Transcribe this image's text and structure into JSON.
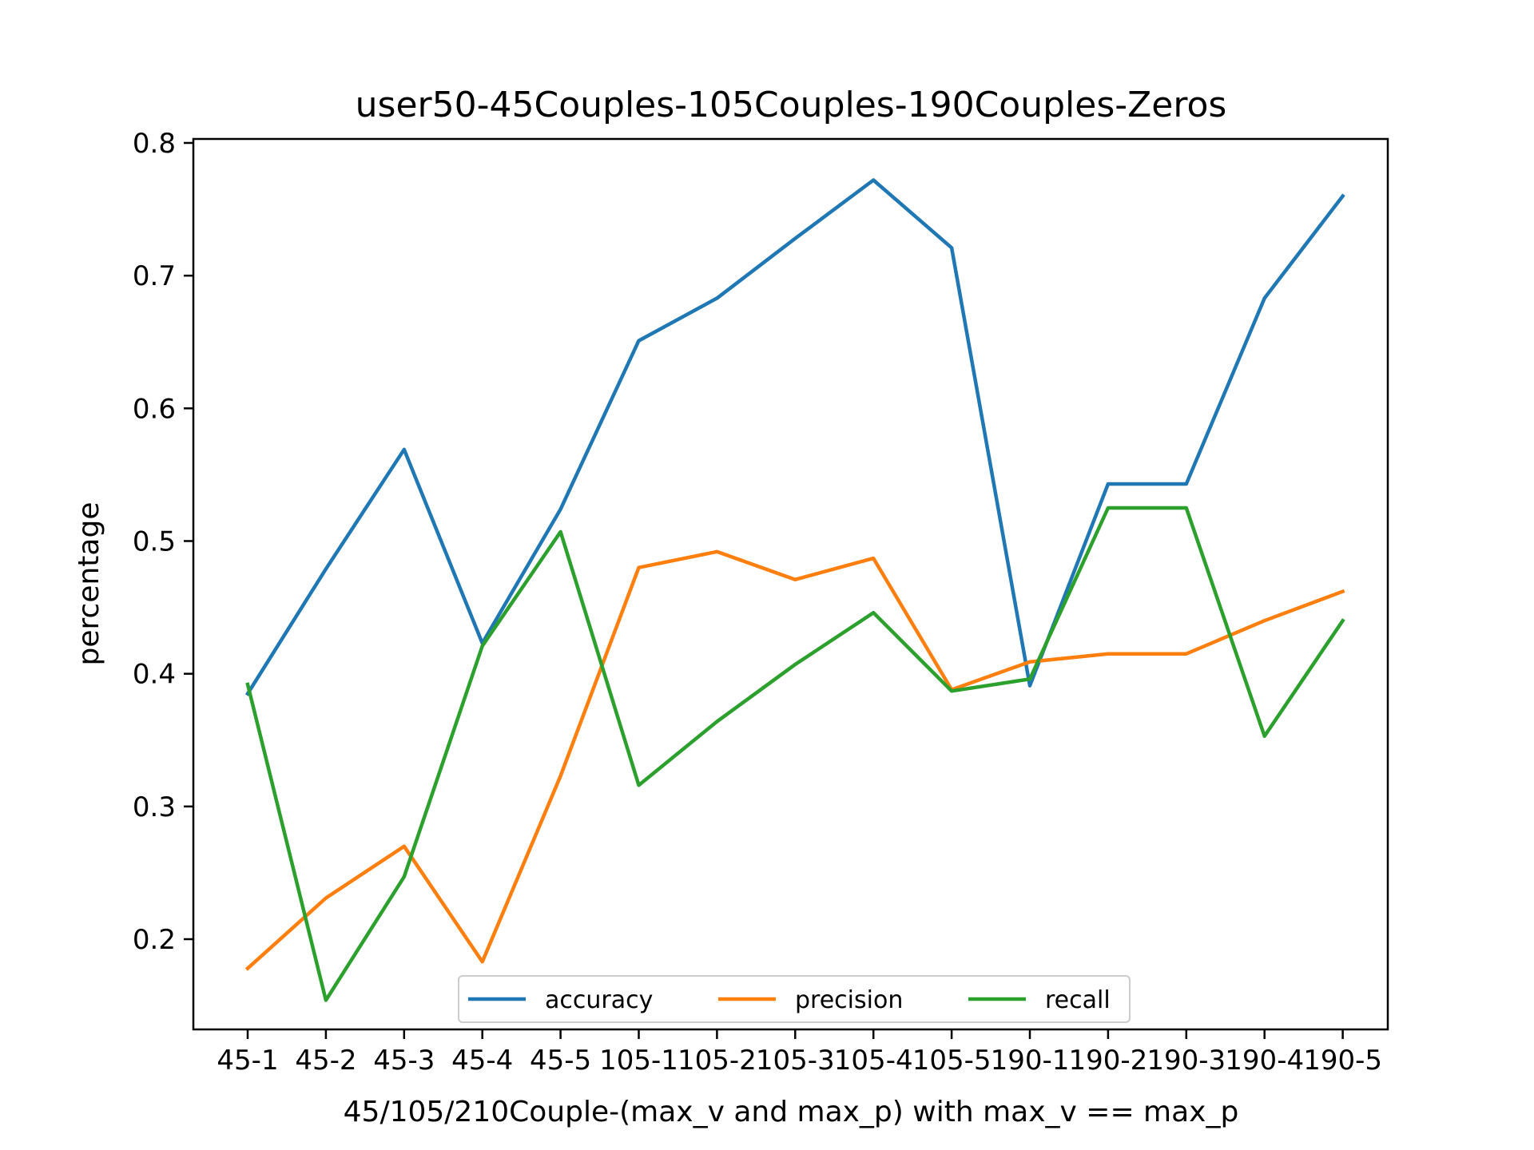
{
  "chart_data": {
    "type": "line",
    "title": "user50-45Couples-105Couples-190Couples-Zeros",
    "xlabel": "45/105/210Couple-(max_v and max_p) with max_v == max_p",
    "ylabel": "percentage",
    "categories": [
      "45-1",
      "45-2",
      "45-3",
      "45-4",
      "45-5",
      "105-1",
      "105-2",
      "105-3",
      "105-4",
      "105-5",
      "190-1",
      "190-2",
      "190-3",
      "190-4",
      "190-5"
    ],
    "yticks": [
      "0.2",
      "0.3",
      "0.4",
      "0.5",
      "0.6",
      "0.7",
      "0.8"
    ],
    "ylim": [
      0.132,
      0.803
    ],
    "grid": false,
    "legend_position": "lower center",
    "series": [
      {
        "name": "accuracy",
        "color": "#1f77b4",
        "values": [
          0.385,
          0.479,
          0.569,
          0.423,
          0.524,
          0.651,
          0.683,
          0.728,
          0.772,
          0.721,
          0.391,
          0.543,
          0.543,
          0.683,
          0.76
        ]
      },
      {
        "name": "precision",
        "color": "#ff7f0e",
        "values": [
          0.178,
          0.231,
          0.27,
          0.183,
          0.323,
          0.48,
          0.492,
          0.471,
          0.487,
          0.388,
          0.409,
          0.415,
          0.415,
          0.44,
          0.462
        ]
      },
      {
        "name": "recall",
        "color": "#2ca02c",
        "values": [
          0.392,
          0.154,
          0.247,
          0.421,
          0.507,
          0.316,
          0.364,
          0.407,
          0.446,
          0.387,
          0.396,
          0.525,
          0.525,
          0.353,
          0.44
        ]
      }
    ]
  }
}
